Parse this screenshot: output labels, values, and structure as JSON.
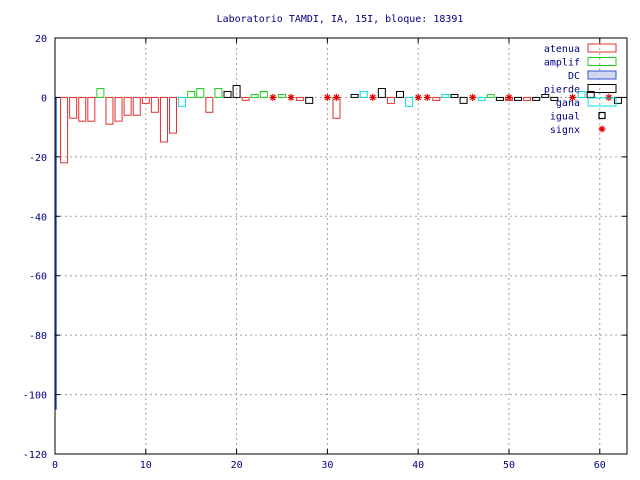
{
  "chart_data": {
    "type": "bar",
    "title": "Laboratorio TAMDI, IA, 15I,  bloque: 18391",
    "xlim": [
      0,
      63
    ],
    "ylim": [
      -120,
      20
    ],
    "xticks": [
      0,
      10,
      20,
      30,
      40,
      50,
      60
    ],
    "yticks": [
      -120,
      -100,
      -80,
      -60,
      -40,
      -20,
      0,
      20
    ],
    "grid": true,
    "legend_position": "top-right",
    "series": [
      {
        "name": "atenua",
        "color": "#e03030",
        "marker": "box",
        "points": [
          [
            1,
            -22
          ],
          [
            2,
            -7
          ],
          [
            3,
            -8
          ],
          [
            4,
            -8
          ],
          [
            6,
            -9
          ],
          [
            7,
            -8
          ],
          [
            8,
            -6
          ],
          [
            9,
            -6
          ],
          [
            10,
            -2
          ],
          [
            11,
            -5
          ],
          [
            12,
            -15
          ],
          [
            13,
            -12
          ],
          [
            17,
            -5
          ],
          [
            21,
            -1
          ],
          [
            27,
            -1
          ],
          [
            31,
            -7
          ],
          [
            37,
            -2
          ],
          [
            42,
            -1
          ],
          [
            50,
            -1
          ],
          [
            52,
            -1
          ]
        ]
      },
      {
        "name": "amplif",
        "color": "#20d020",
        "marker": "box",
        "points": [
          [
            5,
            3
          ],
          [
            15,
            2
          ],
          [
            16,
            3
          ],
          [
            18,
            3
          ],
          [
            22,
            1
          ],
          [
            23,
            2
          ],
          [
            25,
            1
          ],
          [
            48,
            1
          ]
        ]
      },
      {
        "name": "DC",
        "color": "#3050d0",
        "marker": "box",
        "points": [
          [
            0,
            -105
          ]
        ]
      },
      {
        "name": "pierde",
        "color": "#000000",
        "marker": "box",
        "points": [
          [
            19,
            2
          ],
          [
            20,
            4
          ],
          [
            28,
            -2
          ],
          [
            33,
            1
          ],
          [
            36,
            3
          ],
          [
            38,
            2
          ],
          [
            44,
            1
          ],
          [
            45,
            -2
          ],
          [
            49,
            -1
          ],
          [
            51,
            -1
          ],
          [
            53,
            -1
          ],
          [
            54,
            1
          ],
          [
            55,
            -1
          ],
          [
            59,
            2
          ],
          [
            62,
            -2
          ]
        ]
      },
      {
        "name": "gana",
        "color": "#00e0e0",
        "marker": "box",
        "points": [
          [
            14,
            -3
          ],
          [
            34,
            2
          ],
          [
            39,
            -3
          ],
          [
            43,
            1
          ],
          [
            47,
            -1
          ],
          [
            58,
            2
          ]
        ]
      },
      {
        "name": "igual",
        "color": "#000000",
        "marker": "box",
        "points": []
      },
      {
        "name": "signx",
        "color": "#e00000",
        "marker": "star",
        "points": [
          [
            24,
            0
          ],
          [
            26,
            0
          ],
          [
            30,
            0
          ],
          [
            31,
            0
          ],
          [
            35,
            0
          ],
          [
            40,
            0
          ],
          [
            41,
            0
          ],
          [
            46,
            0
          ],
          [
            50,
            0
          ],
          [
            57,
            0
          ],
          [
            61,
            0
          ]
        ]
      }
    ]
  }
}
